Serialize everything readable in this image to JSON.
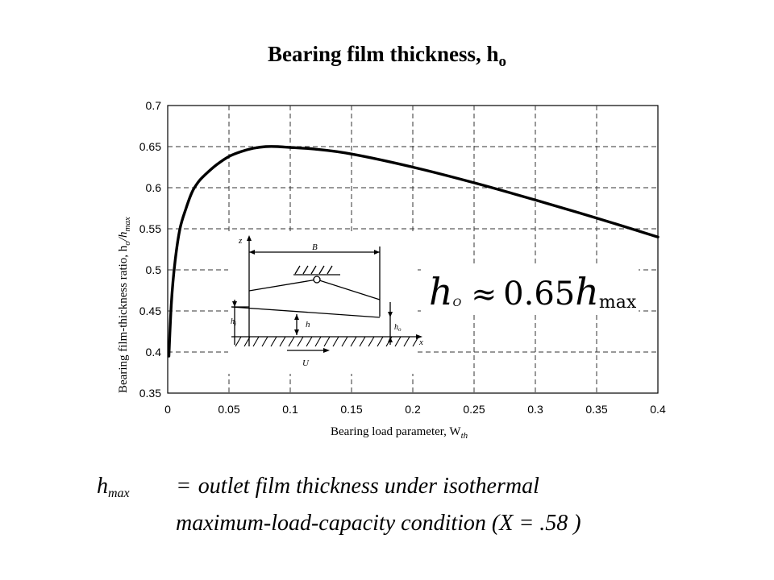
{
  "slide": {
    "title_main": "Bearing film thickness, ",
    "title_sym": "h",
    "title_sub": "o"
  },
  "chart_data": {
    "type": "line",
    "xlabel": "Bearing load parameter, W",
    "xlabel_sub": "th",
    "ylabel": "Bearing film-thickness ratio, h",
    "ylabel_sub1": "o",
    "ylabel_mid": "/h",
    "ylabel_sub2": "max",
    "xlim": [
      0,
      0.4
    ],
    "ylim": [
      0.35,
      0.7
    ],
    "xticks": [
      "0",
      "0.05",
      "0.1",
      "0.15",
      "0.2",
      "0.25",
      "0.3",
      "0.35",
      "0.4"
    ],
    "yticks": [
      "0.35",
      "0.4",
      "0.45",
      "0.5",
      "0.55",
      "0.6",
      "0.65",
      "0.7"
    ],
    "grid": true,
    "series": [
      {
        "x": [
          0.001,
          0.003,
          0.006,
          0.01,
          0.015,
          0.02,
          0.025,
          0.03,
          0.04,
          0.05,
          0.06,
          0.07,
          0.08,
          0.09,
          0.1,
          0.12,
          0.15,
          0.2,
          0.25,
          0.3,
          0.35,
          0.4
        ],
        "y": [
          0.395,
          0.46,
          0.51,
          0.55,
          0.575,
          0.595,
          0.607,
          0.615,
          0.628,
          0.638,
          0.644,
          0.648,
          0.65,
          0.65,
          0.649,
          0.647,
          0.641,
          0.625,
          0.606,
          0.585,
          0.563,
          0.54
        ]
      }
    ],
    "annotation": {
      "lhs_sym": "h",
      "lhs_sub": "O",
      "rel": "≈",
      "coef": "0.65",
      "rhs_sym": "h",
      "rhs_sub": "max"
    },
    "inset_labels": {
      "z": "z",
      "B": "B",
      "hi": "h",
      "hi_sub": "i",
      "h": "h",
      "ho": "h",
      "ho_sub": "o",
      "x": "x",
      "U": "U"
    }
  },
  "footnote": {
    "lhs_sym": "h",
    "lhs_sub": "max",
    "eq": "=",
    "line1": "outlet film thickness under isothermal",
    "line2": "maximum-load-capacity condition (X = .58 )"
  }
}
